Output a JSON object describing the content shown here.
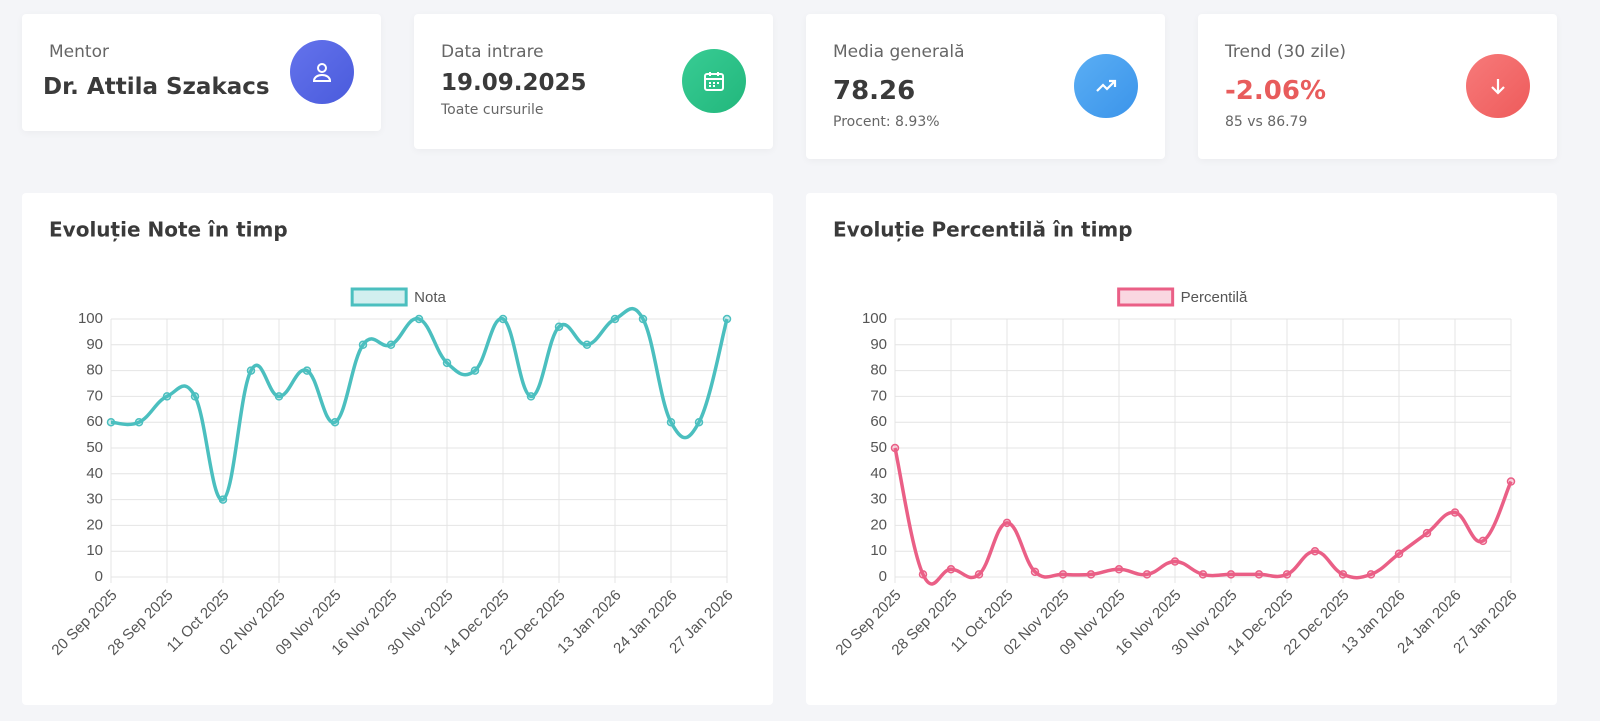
{
  "cards": [
    {
      "label": "Mentor",
      "value": "Dr. Attila Szakacs"
    },
    {
      "label": "Data intrare",
      "value": "19.09.2025",
      "sub": "Toate cursurile"
    },
    {
      "label": "Media generală",
      "value": "78.26",
      "sub": "Procent: 8.93%"
    },
    {
      "label": "Trend (30 zile)",
      "value": "-2.06%",
      "sub": "85 vs 86.79"
    }
  ],
  "chart_data": [
    {
      "type": "line",
      "title": "Evoluție Note în timp",
      "categories": [
        "20 Sep 2025",
        null,
        "28 Sep 2025",
        null,
        "11 Oct 2025",
        null,
        "02 Nov 2025",
        null,
        "09 Nov 2025",
        null,
        "16 Nov 2025",
        null,
        "30 Nov 2025",
        null,
        "14 Dec 2025",
        null,
        "22 Dec 2025",
        null,
        "13 Jan 2026",
        null,
        "24 Jan 2026",
        null,
        "27 Jan 2026"
      ],
      "series": [
        {
          "name": "Nota",
          "color": "#4bbfbf",
          "values": [
            60,
            60,
            70,
            70,
            30,
            80,
            70,
            80,
            60,
            90,
            90,
            100,
            83,
            80,
            100,
            70,
            97,
            90,
            100,
            100,
            60,
            60,
            100
          ]
        }
      ],
      "ylim": [
        0,
        100
      ],
      "yticks": [
        0,
        10,
        20,
        30,
        40,
        50,
        60,
        70,
        80,
        90,
        100
      ],
      "grid": true,
      "legend": "top"
    },
    {
      "type": "line",
      "title": "Evoluție Percentilă în timp",
      "categories": [
        "20 Sep 2025",
        null,
        "28 Sep 2025",
        null,
        "11 Oct 2025",
        null,
        "02 Nov 2025",
        null,
        "09 Nov 2025",
        null,
        "16 Nov 2025",
        null,
        "30 Nov 2025",
        null,
        "14 Dec 2025",
        null,
        "22 Dec 2025",
        null,
        "13 Jan 2026",
        null,
        "24 Jan 2026",
        null,
        "27 Jan 2026"
      ],
      "series": [
        {
          "name": "Percentilă",
          "color": "#ea5f86",
          "values": [
            50,
            1,
            3,
            1,
            21,
            2,
            1,
            1,
            3,
            1,
            6,
            1,
            1,
            1,
            1,
            10,
            1,
            1,
            9,
            17,
            25,
            14,
            37
          ]
        }
      ],
      "ylim": [
        0,
        100
      ],
      "yticks": [
        0,
        10,
        20,
        30,
        40,
        50,
        60,
        70,
        80,
        90,
        100
      ],
      "grid": true,
      "legend": "top"
    }
  ]
}
